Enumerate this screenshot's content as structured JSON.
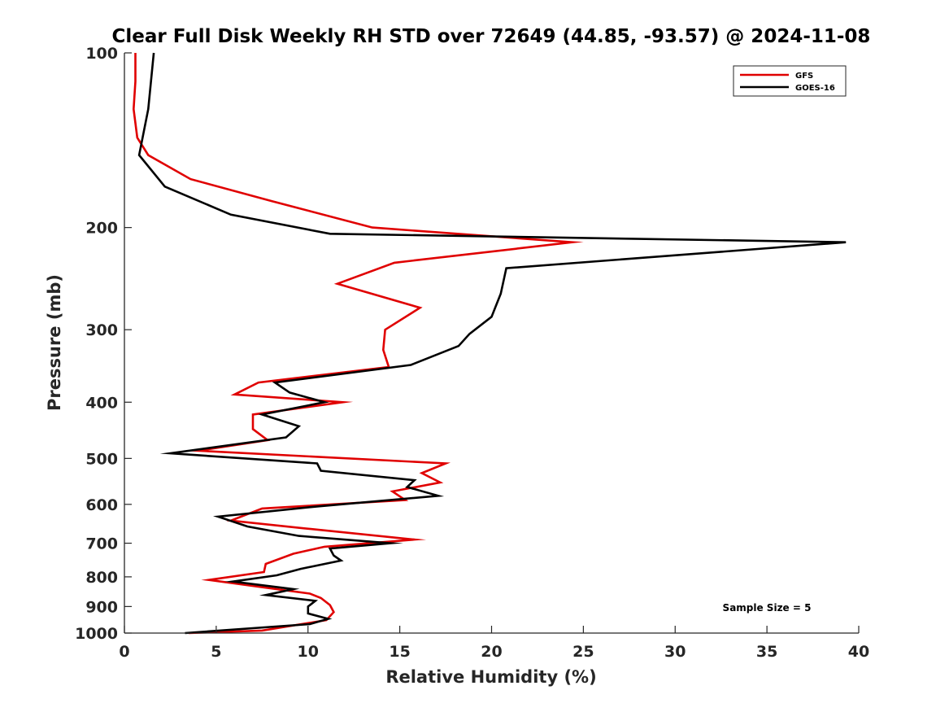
{
  "chart_data": {
    "type": "line",
    "title": "Clear Full Disk Weekly RH STD over 72649 (44.85, -93.57) @ 2024-11-08",
    "xlabel": "Relative Humidity (%)",
    "ylabel": "Pressure (mb)",
    "xlim": [
      0,
      40
    ],
    "ylim": [
      100,
      1000
    ],
    "y_scale": "log",
    "y_reversed": true,
    "x_ticks": [
      0,
      5,
      10,
      15,
      20,
      25,
      30,
      35,
      40
    ],
    "y_ticks": [
      100,
      200,
      300,
      400,
      500,
      600,
      700,
      800,
      900,
      1000
    ],
    "grid": false,
    "legend": "top-right",
    "annotation": "Sample Size = 5",
    "series": [
      {
        "name": "GFS",
        "color": "#e00000",
        "points": [
          [
            0.6,
            100
          ],
          [
            0.6,
            112
          ],
          [
            0.5,
            125
          ],
          [
            0.7,
            140
          ],
          [
            1.3,
            150
          ],
          [
            3.6,
            165
          ],
          [
            8.0,
            180
          ],
          [
            13.5,
            200
          ],
          [
            24.4,
            212
          ],
          [
            14.7,
            230
          ],
          [
            11.6,
            250
          ],
          [
            16.1,
            275
          ],
          [
            14.2,
            300
          ],
          [
            14.1,
            325
          ],
          [
            14.4,
            348
          ],
          [
            7.3,
            370
          ],
          [
            6.0,
            388
          ],
          [
            11.9,
            400
          ],
          [
            7.0,
            420
          ],
          [
            7.0,
            445
          ],
          [
            7.8,
            465
          ],
          [
            4.0,
            485
          ],
          [
            17.5,
            510
          ],
          [
            16.2,
            530
          ],
          [
            17.2,
            550
          ],
          [
            14.6,
            570
          ],
          [
            15.3,
            590
          ],
          [
            7.5,
            610
          ],
          [
            5.8,
            640
          ],
          [
            9.8,
            660
          ],
          [
            15.8,
            690
          ],
          [
            10.9,
            710
          ],
          [
            9.2,
            730
          ],
          [
            7.7,
            760
          ],
          [
            7.6,
            785
          ],
          [
            4.6,
            810
          ],
          [
            7.7,
            835
          ],
          [
            10.1,
            855
          ],
          [
            10.7,
            870
          ],
          [
            11.2,
            895
          ],
          [
            11.4,
            920
          ],
          [
            11.0,
            950
          ],
          [
            7.5,
            990
          ],
          [
            3.5,
            1000
          ]
        ]
      },
      {
        "name": "GOES-16",
        "color": "#000000",
        "points": [
          [
            1.6,
            100
          ],
          [
            1.3,
            125
          ],
          [
            0.8,
            150
          ],
          [
            2.2,
            170
          ],
          [
            5.8,
            190
          ],
          [
            11.2,
            205
          ],
          [
            39.3,
            212
          ],
          [
            20.8,
            235
          ],
          [
            20.5,
            260
          ],
          [
            20.0,
            285
          ],
          [
            18.8,
            305
          ],
          [
            18.2,
            320
          ],
          [
            15.6,
            345
          ],
          [
            8.2,
            370
          ],
          [
            9.0,
            385
          ],
          [
            10.9,
            400
          ],
          [
            7.5,
            420
          ],
          [
            9.5,
            440
          ],
          [
            8.8,
            460
          ],
          [
            2.5,
            490
          ],
          [
            10.5,
            510
          ],
          [
            10.7,
            525
          ],
          [
            15.8,
            545
          ],
          [
            15.4,
            560
          ],
          [
            17.1,
            580
          ],
          [
            10.5,
            605
          ],
          [
            5.1,
            630
          ],
          [
            6.7,
            655
          ],
          [
            9.5,
            680
          ],
          [
            14.5,
            700
          ],
          [
            11.2,
            715
          ],
          [
            11.4,
            735
          ],
          [
            11.8,
            750
          ],
          [
            9.6,
            775
          ],
          [
            8.3,
            795
          ],
          [
            5.9,
            815
          ],
          [
            9.2,
            840
          ],
          [
            7.7,
            860
          ],
          [
            10.4,
            880
          ],
          [
            10.0,
            900
          ],
          [
            10.0,
            925
          ],
          [
            11.1,
            945
          ],
          [
            10.1,
            965
          ],
          [
            3.3,
            1000
          ]
        ]
      }
    ]
  }
}
